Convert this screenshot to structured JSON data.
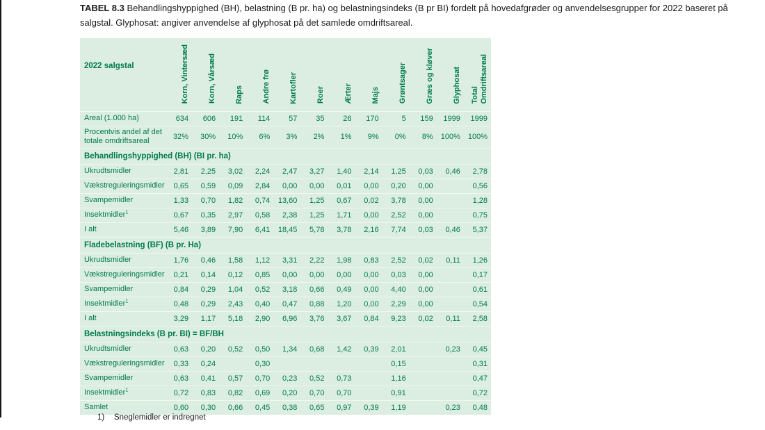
{
  "page": {
    "caption_label": "TABEL 8.3",
    "caption_text": " Behandlingshyppighed (BH), belastning (B pr. ha) og belastningsindeks (B pr BI) fordelt på hovedafgrøder og anvendelsesgrupper for 2022 baseret på salgstal. Glyphosat: angiver anvendelse af glyphosat på det samlede omdriftsareal.",
    "footnote_marker": "1)",
    "footnote_text": "Sneglemidler er indregnet"
  },
  "colors": {
    "table_background": "#dcede2",
    "text_green": "#007b4b",
    "caption_text": "#1a1a1a"
  },
  "table": {
    "corner_label": "2022 salgstal",
    "column_headers": [
      "Korn, Vintersæd",
      "Korn, Vårsæd",
      "Raps",
      "Andre frø",
      "Kartofler",
      "Roer",
      "Ærter",
      "Majs",
      "Grøntsager",
      "Græs og kløver",
      "Glyphosat",
      "Total\nOmdriftsareal"
    ],
    "rows": [
      {
        "type": "data",
        "label": "Areal (1.000 ha)",
        "values": [
          "634",
          "606",
          "191",
          "114",
          "57",
          "35",
          "26",
          "170",
          "5",
          "159",
          "1999",
          "1999"
        ]
      },
      {
        "type": "data",
        "tall": true,
        "label": "Procentvis andel af det\ntotale omdriftsareal",
        "values": [
          "32%",
          "30%",
          "10%",
          "6%",
          "3%",
          "2%",
          "1%",
          "9%",
          "0%",
          "8%",
          "100%",
          "100%"
        ]
      },
      {
        "type": "section",
        "label": "Behandlingshyppighed (BH) (BI pr. ha)"
      },
      {
        "type": "data",
        "label": "Ukrudtsmidler",
        "values": [
          "2,81",
          "2,25",
          "3,02",
          "2,24",
          "2,47",
          "3,27",
          "1,40",
          "2,14",
          "1,25",
          "0,03",
          "0,46",
          "2,78"
        ]
      },
      {
        "type": "data",
        "label": "Vækstreguleringsmidler",
        "values": [
          "0,65",
          "0,59",
          "0,09",
          "2,84",
          "0,00",
          "0,00",
          "0,01",
          "0,00",
          "0,20",
          "0,00",
          "",
          "0,56"
        ]
      },
      {
        "type": "data",
        "label": "Svampemidler",
        "values": [
          "1,33",
          "0,70",
          "1,82",
          "0,74",
          "13,60",
          "1,25",
          "0,67",
          "0,02",
          "3,78",
          "0,00",
          "",
          "1,28"
        ]
      },
      {
        "type": "data",
        "label": "Insektmidler",
        "footnote_ref": "1",
        "values": [
          "0,67",
          "0,35",
          "2,97",
          "0,58",
          "2,38",
          "1,25",
          "1,71",
          "0,00",
          "2,52",
          "0,00",
          "",
          "0,75"
        ]
      },
      {
        "type": "data",
        "label": "I alt",
        "values": [
          "5,46",
          "3,89",
          "7,90",
          "6,41",
          "18,45",
          "5,78",
          "3,78",
          "2,16",
          "7,74",
          "0,03",
          "0,46",
          "5,37"
        ]
      },
      {
        "type": "section",
        "label": "Fladebelastning (BF) (B pr. Ha)"
      },
      {
        "type": "data",
        "label": "Ukrudtsmidler",
        "values": [
          "1,76",
          "0,46",
          "1,58",
          "1,12",
          "3,31",
          "2,22",
          "1,98",
          "0,83",
          "2,52",
          "0,02",
          "0,11",
          "1,26"
        ]
      },
      {
        "type": "data",
        "label": "Vækstreguleringsmidler",
        "values": [
          "0,21",
          "0,14",
          "0,12",
          "0,85",
          "0,00",
          "0,00",
          "0,00",
          "0,00",
          "0,03",
          "0,00",
          "",
          "0,17"
        ]
      },
      {
        "type": "data",
        "label": "Svampemidler",
        "values": [
          "0,84",
          "0,29",
          "1,04",
          "0,52",
          "3,18",
          "0,66",
          "0,49",
          "0,00",
          "4,40",
          "0,00",
          "",
          "0,61"
        ]
      },
      {
        "type": "data",
        "label": "Insektmidler",
        "footnote_ref": "1",
        "values": [
          "0,48",
          "0,29",
          "2,43",
          "0,40",
          "0,47",
          "0,88",
          "1,20",
          "0,00",
          "2,29",
          "0,00",
          "",
          "0,54"
        ]
      },
      {
        "type": "data",
        "label": "I alt",
        "values": [
          "3,29",
          "1,17",
          "5,18",
          "2,90",
          "6,96",
          "3,76",
          "3,67",
          "0,84",
          "9,23",
          "0,02",
          "0,11",
          "2,58"
        ]
      },
      {
        "type": "section",
        "label": "Belastningsindeks (B pr. BI) = BF/BH"
      },
      {
        "type": "data",
        "label": "Ukrudtsmidler",
        "values": [
          "0,63",
          "0,20",
          "0,52",
          "0,50",
          "1,34",
          "0,68",
          "1,42",
          "0,39",
          "2,01",
          "",
          "0,23",
          "0,45"
        ]
      },
      {
        "type": "data",
        "label": "Vækstreguleringsmidler",
        "values": [
          "0,33",
          "0,24",
          "",
          "0,30",
          "",
          "",
          "",
          "",
          "0,15",
          "",
          "",
          "0,31"
        ]
      },
      {
        "type": "data",
        "label": "Svampemidler",
        "values": [
          "0,63",
          "0,41",
          "0,57",
          "0,70",
          "0,23",
          "0,52",
          "0,73",
          "",
          "1,16",
          "",
          "",
          "0,47"
        ]
      },
      {
        "type": "data",
        "label": "Insektmidler",
        "footnote_ref": "1",
        "values": [
          "0,72",
          "0,83",
          "0,82",
          "0,69",
          "0,20",
          "0,70",
          "0,70",
          "",
          "0,91",
          "",
          "",
          "0,72"
        ]
      },
      {
        "type": "data",
        "label": "Samlet",
        "values": [
          "0,60",
          "0,30",
          "0,66",
          "0,45",
          "0,38",
          "0,65",
          "0,97",
          "0,39",
          "1,19",
          "",
          "0,23",
          "0,48"
        ]
      }
    ]
  }
}
